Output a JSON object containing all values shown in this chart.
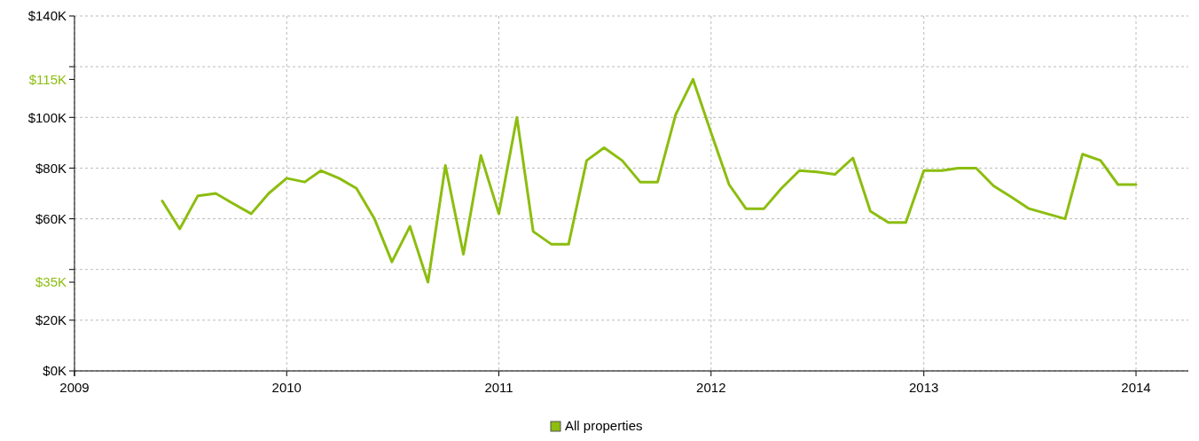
{
  "chart_data": {
    "type": "line",
    "x": [
      "2009-06",
      "2009-07",
      "2009-08",
      "2009-09",
      "2009-10",
      "2009-11",
      "2009-12",
      "2010-01",
      "2010-02",
      "2010-03",
      "2010-04",
      "2010-05",
      "2010-06",
      "2010-07",
      "2010-08",
      "2010-09",
      "2010-10",
      "2010-11",
      "2010-12",
      "2011-01",
      "2011-02",
      "2011-03",
      "2011-04",
      "2011-05",
      "2011-06",
      "2011-07",
      "2011-08",
      "2011-09",
      "2011-10",
      "2011-11",
      "2011-12",
      "2012-01",
      "2012-02",
      "2012-03",
      "2012-04",
      "2012-05",
      "2012-06",
      "2012-07",
      "2012-08",
      "2012-09",
      "2012-10",
      "2012-11",
      "2012-12",
      "2013-01",
      "2013-02",
      "2013-03",
      "2013-04",
      "2013-05",
      "2013-06",
      "2013-07",
      "2013-08",
      "2013-09",
      "2013-10",
      "2013-11",
      "2013-12",
      "2014-01"
    ],
    "series": [
      {
        "name": "All properties",
        "color": "#8cbd0f",
        "values": [
          67,
          56,
          69,
          70,
          66,
          62,
          70,
          76,
          74.5,
          79,
          76,
          72,
          60,
          43,
          57,
          35,
          81,
          46,
          85,
          62,
          100,
          55,
          50,
          50,
          83,
          88,
          83,
          74.5,
          74.5,
          101,
          115,
          94,
          73.5,
          64,
          64,
          72,
          79,
          78.5,
          77.5,
          84,
          63,
          58.5,
          58.5,
          79,
          79,
          80,
          80,
          73,
          68.5,
          64,
          62,
          60,
          85.5,
          83,
          73.5,
          73.5
        ]
      }
    ],
    "xlim": [
      "2009-01",
      "2014-04"
    ],
    "xticks": [
      {
        "value": "2009",
        "label": "2009"
      },
      {
        "value": "2010",
        "label": "2010"
      },
      {
        "value": "2011",
        "label": "2011"
      },
      {
        "value": "2012",
        "label": "2012"
      },
      {
        "value": "2013",
        "label": "2013"
      },
      {
        "value": "2014",
        "label": "2014"
      }
    ],
    "ylim": [
      0,
      140
    ],
    "yticks": [
      {
        "value": 0,
        "label": "$0K"
      },
      {
        "value": 20,
        "label": "$20K"
      },
      {
        "value": 40,
        "label": null
      },
      {
        "value": 60,
        "label": "$60K"
      },
      {
        "value": 80,
        "label": "$80K"
      },
      {
        "value": 100,
        "label": "$100K"
      },
      {
        "value": 120,
        "label": null
      },
      {
        "value": 140,
        "label": "$140K"
      }
    ],
    "annotations": [
      "$115K",
      "$35K"
    ],
    "grid": true,
    "legend": "bottom",
    "marker": "none",
    "line_style": "solid"
  }
}
